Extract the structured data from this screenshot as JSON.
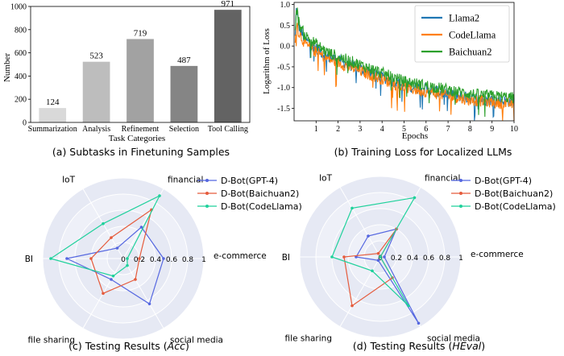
{
  "chart_data": [
    {
      "type": "bar",
      "caption": "(a) Subtasks in Finetuning Samples",
      "xlabel": "Task Categories",
      "ylabel": "Number",
      "ylim": [
        0,
        1000
      ],
      "yticks": [
        0,
        200,
        400,
        600,
        800,
        1000
      ],
      "categories": [
        "Summarization",
        "Analysis",
        "Refinement",
        "Selection",
        "Tool Calling"
      ],
      "values": [
        124,
        523,
        719,
        487,
        971
      ],
      "colors": [
        "#d9d9d9",
        "#bdbdbd",
        "#a2a2a2",
        "#858585",
        "#636363"
      ],
      "grid": false
    },
    {
      "type": "line",
      "caption": "(b) Training Loss for Localized LLMs",
      "xlabel": "Epochs",
      "ylabel": "Logarithm of Loss",
      "xlim": [
        0,
        10
      ],
      "ylim": [
        -1.8,
        1.05
      ],
      "xticks": [
        1,
        2,
        3,
        4,
        5,
        6,
        7,
        8,
        9,
        10
      ],
      "yticks": [
        -1.5,
        -1.0,
        -0.5,
        0.0,
        0.5,
        1.0
      ],
      "legend_position": "top-right",
      "grid": false,
      "series": [
        {
          "name": "Llama2",
          "color": "#1f77b4",
          "x": [
            0.05,
            0.1,
            0.15,
            0.2,
            0.3,
            0.4,
            0.5,
            0.75,
            1.0,
            1.5,
            2.0,
            2.5,
            3.0,
            3.5,
            4.0,
            4.5,
            5.0,
            5.5,
            6.0,
            6.5,
            7.0,
            7.5,
            8.0,
            8.5,
            9.0,
            9.5,
            10.0
          ],
          "y": [
            0.2,
            0.9,
            0.75,
            0.5,
            0.35,
            0.25,
            0.15,
            0.05,
            -0.05,
            -0.25,
            -0.35,
            -0.45,
            -0.55,
            -0.65,
            -0.75,
            -0.85,
            -0.95,
            -1.0,
            -1.05,
            -1.1,
            -1.15,
            -1.2,
            -1.25,
            -1.28,
            -1.3,
            -1.32,
            -1.35
          ]
        },
        {
          "name": "CodeLlama",
          "color": "#ff7f0e",
          "x": [
            0.05,
            0.1,
            0.15,
            0.2,
            0.3,
            0.4,
            0.5,
            0.75,
            1.0,
            1.5,
            2.0,
            2.5,
            3.0,
            3.5,
            4.0,
            4.5,
            5.0,
            5.5,
            6.0,
            6.5,
            7.0,
            7.5,
            8.0,
            8.5,
            9.0,
            9.5,
            10.0
          ],
          "y": [
            0.1,
            0.6,
            0.5,
            0.35,
            0.25,
            0.15,
            0.05,
            -0.05,
            -0.15,
            -0.3,
            -0.4,
            -0.5,
            -0.6,
            -0.7,
            -0.8,
            -0.9,
            -1.0,
            -1.05,
            -1.1,
            -1.15,
            -1.2,
            -1.25,
            -1.3,
            -1.32,
            -1.35,
            -1.38,
            -1.4
          ]
        },
        {
          "name": "Baichuan2",
          "color": "#2ca02c",
          "x": [
            0.05,
            0.1,
            0.15,
            0.2,
            0.3,
            0.4,
            0.5,
            0.75,
            1.0,
            1.5,
            2.0,
            2.5,
            3.0,
            3.5,
            4.0,
            4.5,
            5.0,
            5.5,
            6.0,
            6.5,
            7.0,
            7.5,
            8.0,
            8.5,
            9.0,
            9.5,
            10.0
          ],
          "y": [
            0.3,
            0.95,
            0.8,
            0.6,
            0.45,
            0.35,
            0.25,
            0.15,
            0.05,
            -0.15,
            -0.25,
            -0.35,
            -0.45,
            -0.55,
            -0.65,
            -0.75,
            -0.85,
            -0.9,
            -0.95,
            -1.0,
            -1.05,
            -1.1,
            -1.15,
            -1.18,
            -1.2,
            -1.22,
            -1.25
          ]
        }
      ]
    },
    {
      "type": "radar",
      "caption_prefix": "(c) Testing Results (",
      "caption_em": "Acc",
      "caption_suffix": ")",
      "axes": [
        "e-commerce",
        "financial",
        "IoT",
        "BI",
        "file sharing",
        "social media"
      ],
      "rticks": [
        "0",
        "0.2",
        "0.4",
        "0.6",
        "0.8",
        "1"
      ],
      "rmax": 1,
      "legend_position": "top-right",
      "series": [
        {
          "name": "D-Bot(GPT-4)",
          "color": "#5567e0",
          "values": [
            0.5,
            0.45,
            0.15,
            0.7,
            0.3,
            0.65
          ]
        },
        {
          "name": "D-Bot(Baichuan2)",
          "color": "#e55b3c",
          "values": [
            0.2,
            0.7,
            0.3,
            0.4,
            0.5,
            0.3
          ]
        },
        {
          "name": "D-Bot(CodeLlama)",
          "color": "#1fd19b",
          "values": [
            0.05,
            0.9,
            0.5,
            0.9,
            0.25,
            0.1
          ]
        }
      ]
    },
    {
      "type": "radar",
      "caption_prefix": "(d) Testing Results (",
      "caption_em": "HEval",
      "caption_suffix": ")",
      "axes": [
        "e-commerce",
        "financial",
        "IoT",
        "BI",
        "file sharing",
        "social media"
      ],
      "rticks": [
        "0",
        "0.2",
        "0.4",
        "0.6",
        "0.8",
        "1"
      ],
      "rmax": 1,
      "legend_position": "top-right",
      "series": [
        {
          "name": "D-Bot(GPT-4)",
          "color": "#5567e0",
          "values": [
            0.05,
            0.4,
            0.3,
            0.3,
            0.05,
            0.95
          ]
        },
        {
          "name": "D-Bot(Baichuan2)",
          "color": "#e55b3c",
          "values": [
            0.0,
            0.4,
            0.05,
            0.45,
            0.7,
            0.3
          ]
        },
        {
          "name": "D-Bot(CodeLlama)",
          "color": "#1fd19b",
          "values": [
            0.0,
            0.85,
            0.7,
            0.6,
            0.2,
            0.7
          ]
        }
      ]
    }
  ]
}
